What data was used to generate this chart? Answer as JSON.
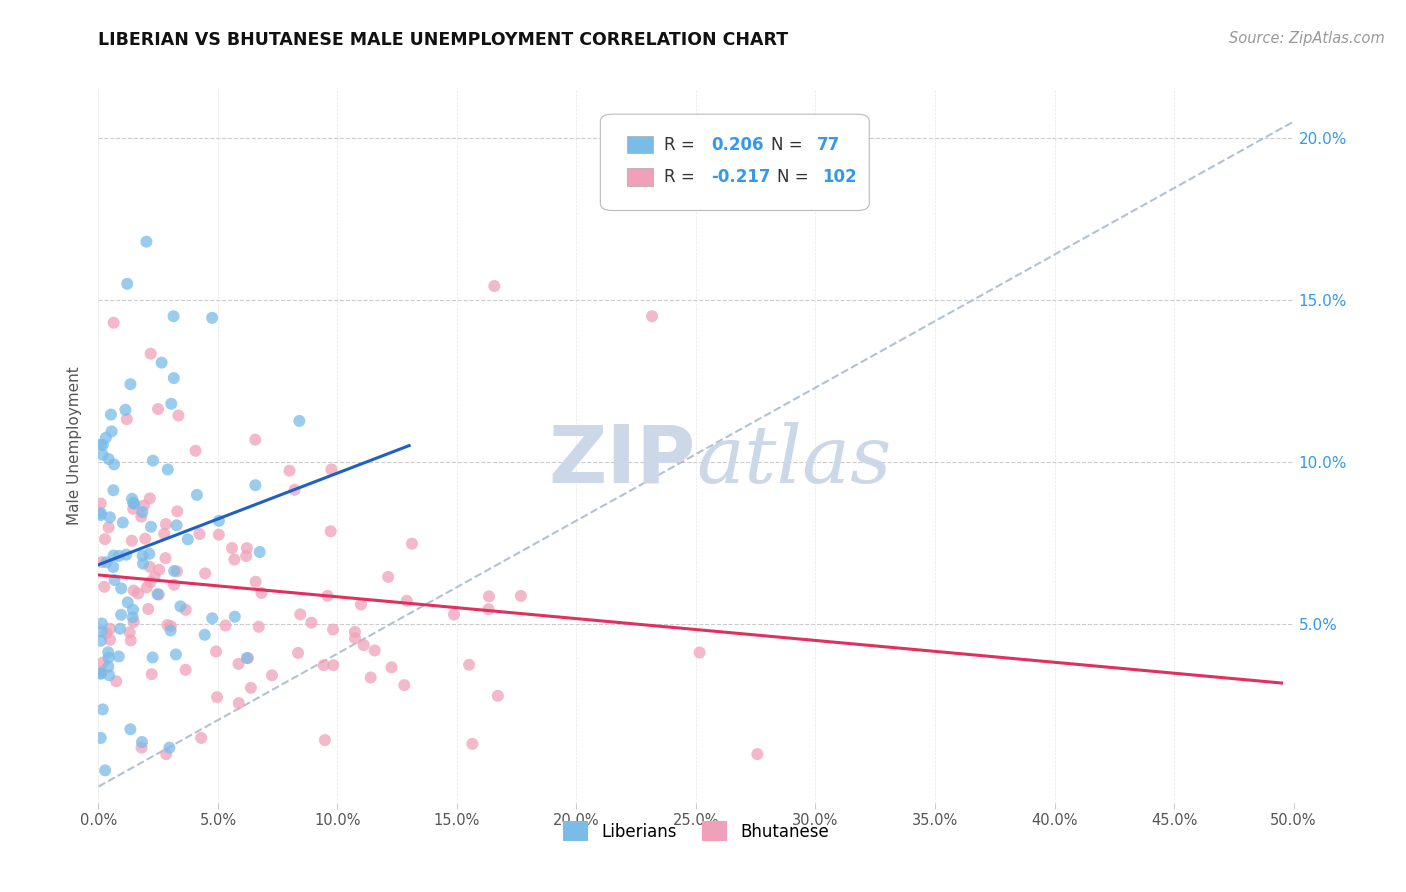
{
  "title": "LIBERIAN VS BHUTANESE MALE UNEMPLOYMENT CORRELATION CHART",
  "source": "Source: ZipAtlas.com",
  "ylabel": "Male Unemployment",
  "xlim": [
    0.0,
    0.5
  ],
  "ylim": [
    -0.005,
    0.215
  ],
  "xticks": [
    0.0,
    0.05,
    0.1,
    0.15,
    0.2,
    0.25,
    0.3,
    0.35,
    0.4,
    0.45,
    0.5
  ],
  "yticks_right": [
    0.05,
    0.1,
    0.15,
    0.2
  ],
  "ytick_labels_right": [
    "5.0%",
    "10.0%",
    "15.0%",
    "20.0%"
  ],
  "xtick_labels": [
    "0.0%",
    "5.0%",
    "10.0%",
    "15.0%",
    "20.0%",
    "25.0%",
    "30.0%",
    "35.0%",
    "40.0%",
    "45.0%",
    "50.0%"
  ],
  "grid_yticks": [
    0.05,
    0.1,
    0.15,
    0.2
  ],
  "liberian_color": "#7abce8",
  "bhutanese_color": "#f0a0b8",
  "liberian_line_color": "#2060c0",
  "bhutanese_line_color": "#e03060",
  "diagonal_color": "#aabbd0",
  "watermark_color": "#ccd8e8",
  "background_color": "#ffffff",
  "grid_color": "#cccccc",
  "R1": 0.206,
  "N1": 77,
  "R2": -0.217,
  "N2": 102
}
